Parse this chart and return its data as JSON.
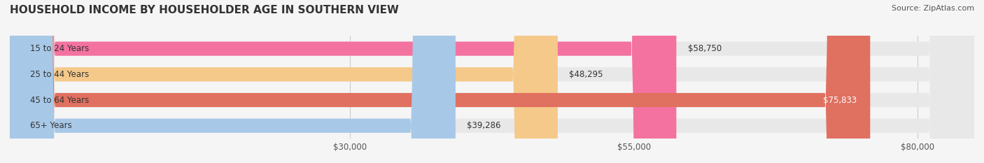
{
  "title": "HOUSEHOLD INCOME BY HOUSEHOLDER AGE IN SOUTHERN VIEW",
  "source": "Source: ZipAtlas.com",
  "categories": [
    "15 to 24 Years",
    "25 to 44 Years",
    "45 to 64 Years",
    "65+ Years"
  ],
  "values": [
    58750,
    48295,
    75833,
    39286
  ],
  "bar_colors": [
    "#F472A0",
    "#F5C98A",
    "#E07060",
    "#A8C8E8"
  ],
  "label_colors": [
    "#333333",
    "#333333",
    "#ffffff",
    "#333333"
  ],
  "x_ticks": [
    30000,
    55000,
    80000
  ],
  "x_tick_labels": [
    "$30,000",
    "$55,000",
    "$80,000"
  ],
  "xlim": [
    0,
    85000
  ],
  "bar_height": 0.55,
  "background_color": "#f5f5f5",
  "bar_bg_color": "#e8e8e8",
  "value_labels": [
    "$58,750",
    "$48,295",
    "$75,833",
    "$39,286"
  ]
}
